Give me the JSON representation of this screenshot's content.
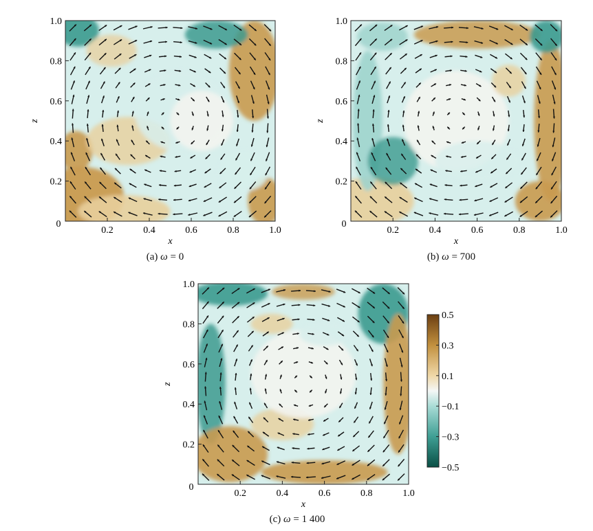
{
  "figure": {
    "panels": [
      {
        "id": "a",
        "caption_prefix": "(a) ",
        "caption_symbol": "ω",
        "caption_value": " = 0",
        "xlabel": "x",
        "ylabel": "z",
        "xticks": [
          "0.2",
          "0.4",
          "0.6",
          "0.8",
          "1.0"
        ],
        "yticks": [
          "0.2",
          "0.4",
          "0.6",
          "0.8",
          "1.0"
        ],
        "origin": "0"
      },
      {
        "id": "b",
        "caption_prefix": "(b) ",
        "caption_symbol": "ω",
        "caption_value": " = 700",
        "xlabel": "x",
        "ylabel": "z",
        "xticks": [
          "0.2",
          "0.4",
          "0.6",
          "0.8",
          "1.0"
        ],
        "yticks": [
          "0.2",
          "0.4",
          "0.6",
          "0.8",
          "1.0"
        ],
        "origin": "0"
      },
      {
        "id": "c",
        "caption_prefix": "(c) ",
        "caption_symbol": "ω",
        "caption_value": " = 1 400",
        "xlabel": "x",
        "ylabel": "z",
        "xticks": [
          "0.2",
          "0.4",
          "0.6",
          "0.8",
          "1.0"
        ],
        "yticks": [
          "0.2",
          "0.4",
          "0.6",
          "0.8",
          "1.0"
        ],
        "origin": "0"
      }
    ]
  },
  "chart_data": [
    {
      "type": "heatmap",
      "title": "",
      "caption": "(a) ω = 0",
      "xlabel": "x",
      "ylabel": "z",
      "xlim": [
        0,
        1
      ],
      "ylim": [
        0,
        1
      ],
      "vector_field": "clockwise single-roll circulation",
      "colorbar": {
        "range": [
          -0.5,
          0.5
        ],
        "ticks": [
          0.5,
          0.3,
          0.1,
          -0.1,
          -0.3,
          -0.5
        ]
      }
    },
    {
      "type": "heatmap",
      "title": "",
      "caption": "(b) ω = 700",
      "xlabel": "x",
      "ylabel": "z",
      "xlim": [
        0,
        1
      ],
      "ylim": [
        0,
        1
      ],
      "vector_field": "clockwise single-roll circulation",
      "colorbar": {
        "range": [
          -0.5,
          0.5
        ],
        "ticks": [
          0.5,
          0.3,
          0.1,
          -0.1,
          -0.3,
          -0.5
        ]
      }
    },
    {
      "type": "heatmap",
      "title": "",
      "caption": "(c) ω = 1 400",
      "xlabel": "x",
      "ylabel": "z",
      "xlim": [
        0,
        1
      ],
      "ylim": [
        0,
        1
      ],
      "vector_field": "clockwise single-roll circulation",
      "colorbar": {
        "range": [
          -0.5,
          0.5
        ],
        "ticks": [
          0.5,
          0.3,
          0.1,
          -0.1,
          -0.3,
          -0.5
        ]
      }
    }
  ],
  "colorbar": {
    "tick_labels": [
      "0.5",
      "0.3",
      "0.1",
      "−0.1",
      "−0.3",
      "−0.5"
    ],
    "tick_values": [
      0.5,
      0.3,
      0.1,
      -0.1,
      -0.3,
      -0.5
    ],
    "colors": {
      "top": "#6b3f12",
      "upper": "#c2903e",
      "mid_warm": "#efd8a8",
      "center": "#f4f7f6",
      "mid_cool": "#a9dcd6",
      "lower": "#3f9f94",
      "bottom": "#0a4f45"
    }
  },
  "colors": {
    "brown_dark": "#8a5a20",
    "brown": "#c99a50",
    "tan": "#e8cf9c",
    "cream": "#f3f4ef",
    "pale_cyan": "#d7efec",
    "cyan": "#9fd4cd",
    "teal": "#3c9a8f",
    "teal_dark": "#1f6f66"
  }
}
